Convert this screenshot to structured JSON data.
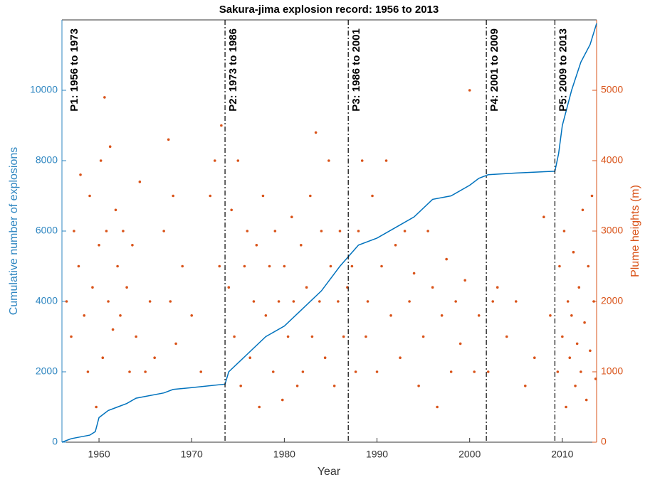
{
  "chart_data": {
    "type": "combo",
    "title": "Sakura-jima explosion record: 1956 to 2013",
    "x_label": "Year",
    "y_label": "Cumulative number of explosions",
    "y2_label": "Plume heights (m)",
    "xlim": [
      1956,
      2013.7
    ],
    "xticks": [
      1960,
      1970,
      1980,
      1990,
      2000,
      2010
    ],
    "ylim": [
      0,
      12000
    ],
    "yticks": [
      0,
      2000,
      4000,
      6000,
      8000,
      10000
    ],
    "y2lim": [
      0,
      6000
    ],
    "y2ticks": [
      0,
      1000,
      2000,
      3000,
      4000,
      5000
    ],
    "y_color": "#2E86C1",
    "y2_color": "#D95319",
    "dividers": [
      1973.6,
      1986.9,
      2001.8,
      2009.2
    ],
    "periods": [
      "P1: 1956 to 1973",
      "P2: 1973 to 1986",
      "P3: 1986 to 2001",
      "P4: 2001 to 2009",
      "P5: 2009 to 2013"
    ],
    "series": [
      {
        "type": "line",
        "color": "#0072BD",
        "x": [
          1956,
          1957,
          1958,
          1959,
          1959.6,
          1960,
          1961,
          1962,
          1963,
          1964,
          1965,
          1967,
          1968,
          1970,
          1973.6,
          1974,
          1976,
          1978,
          1980,
          1982,
          1984,
          1986,
          1987,
          1988,
          1990,
          1992,
          1994,
          1996,
          1998,
          2000,
          2001,
          2002,
          2005,
          2009.2,
          2009.6,
          2010,
          2011,
          2012,
          2013,
          2013.7
        ],
        "values": [
          0,
          100,
          150,
          200,
          300,
          700,
          900,
          1000,
          1100,
          1250,
          1300,
          1400,
          1500,
          1550,
          1650,
          2000,
          2500,
          3000,
          3300,
          3800,
          4300,
          5000,
          5300,
          5600,
          5800,
          6100,
          6400,
          6900,
          7000,
          7300,
          7500,
          7600,
          7650,
          7700,
          8200,
          9000,
          10000,
          10800,
          11300,
          11900
        ]
      },
      {
        "type": "scatter",
        "axis": "y2",
        "color": "#D95319",
        "x": [
          1956.5,
          1957,
          1957.3,
          1957.8,
          1958,
          1958.4,
          1958.8,
          1959,
          1959.3,
          1959.7,
          1960,
          1960.2,
          1960.4,
          1960.6,
          1960.8,
          1961,
          1961.2,
          1961.5,
          1961.8,
          1962,
          1962.3,
          1962.6,
          1963,
          1963.3,
          1963.6,
          1964,
          1964.4,
          1965,
          1965.5,
          1966,
          1967,
          1967.5,
          1967.7,
          1968,
          1968.3,
          1969,
          1970,
          1971,
          1972,
          1972.5,
          1973,
          1973.2,
          1974,
          1974.3,
          1974.6,
          1975,
          1975.3,
          1975.7,
          1976,
          1976.3,
          1976.7,
          1977,
          1977.3,
          1977.7,
          1978,
          1978.4,
          1978.8,
          1979,
          1979.4,
          1979.8,
          1980,
          1980.4,
          1980.8,
          1981,
          1981.4,
          1981.8,
          1982,
          1982.4,
          1982.8,
          1983,
          1983.4,
          1983.8,
          1984,
          1984.4,
          1984.8,
          1985,
          1985.4,
          1985.8,
          1986,
          1986.4,
          1986.8,
          1987.3,
          1987.7,
          1988,
          1988.4,
          1988.8,
          1989,
          1989.5,
          1990,
          1990.5,
          1991,
          1991.5,
          1992,
          1992.5,
          1993,
          1993.5,
          1994,
          1994.5,
          1995,
          1995.5,
          1996,
          1996.5,
          1997,
          1997.5,
          1998,
          1998.5,
          1999,
          1999.5,
          2000,
          2000.5,
          2001,
          2002,
          2002.5,
          2003,
          2004,
          2005,
          2006,
          2007,
          2008,
          2008.7,
          2009.5,
          2009.7,
          2010,
          2010.2,
          2010.4,
          2010.6,
          2010.8,
          2011,
          2011.2,
          2011.4,
          2011.6,
          2011.8,
          2012,
          2012.2,
          2012.4,
          2012.6,
          2012.8,
          2013,
          2013.2,
          2013.4,
          2013.6
        ],
        "values": [
          2000,
          1500,
          3000,
          2500,
          3800,
          1800,
          1000,
          3500,
          2200,
          500,
          2800,
          4000,
          1200,
          4900,
          3000,
          2000,
          4200,
          1600,
          3300,
          2500,
          1800,
          3000,
          2200,
          1000,
          2800,
          1500,
          3700,
          1000,
          2000,
          1200,
          3000,
          4300,
          2000,
          3500,
          1400,
          2500,
          1800,
          1000,
          3500,
          4000,
          2500,
          4500,
          2200,
          3300,
          1500,
          4000,
          800,
          2500,
          3000,
          1200,
          2000,
          2800,
          500,
          3500,
          1800,
          2500,
          1000,
          3000,
          2000,
          600,
          2500,
          1500,
          3200,
          2000,
          800,
          2800,
          1000,
          2200,
          3500,
          1500,
          4400,
          2000,
          3000,
          1200,
          4000,
          2500,
          800,
          2000,
          3000,
          1500,
          2200,
          2500,
          1000,
          3000,
          4000,
          1500,
          2000,
          3500,
          1000,
          2500,
          4000,
          1800,
          2800,
          1200,
          3000,
          2000,
          2400,
          800,
          1500,
          3000,
          2200,
          500,
          1800,
          2600,
          1000,
          2000,
          1400,
          2300,
          5000,
          1000,
          1800,
          1000,
          2000,
          2200,
          1500,
          2000,
          800,
          1200,
          3200,
          1800,
          1000,
          2500,
          1500,
          3000,
          500,
          2000,
          1200,
          1800,
          2700,
          800,
          1400,
          2200,
          1000,
          3300,
          1700,
          600,
          2500,
          1300,
          3500,
          2000,
          900
        ]
      }
    ]
  }
}
